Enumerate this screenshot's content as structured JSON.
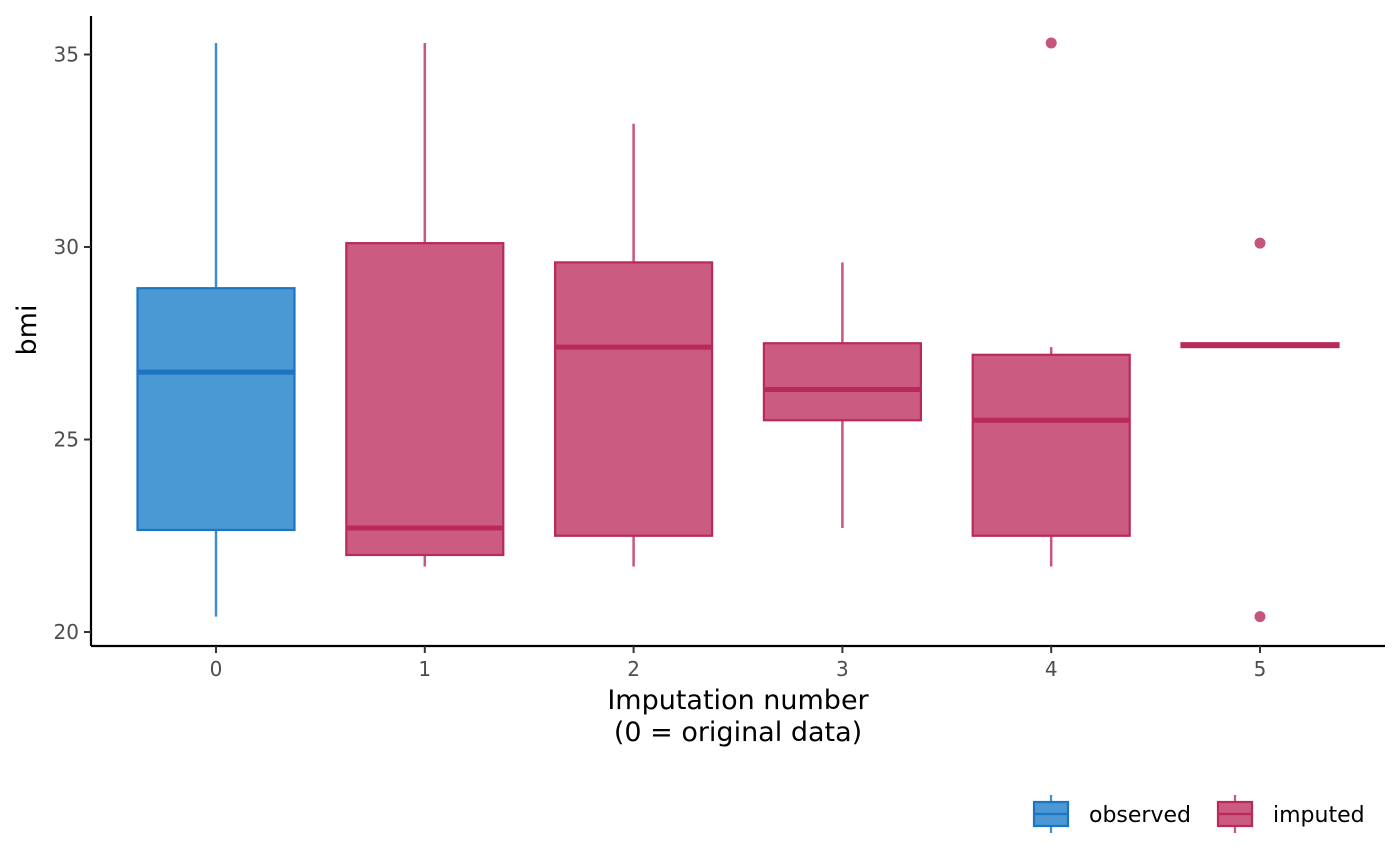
{
  "chart_data": {
    "type": "boxplot",
    "title": "",
    "xlabel_lines": [
      "Imputation number",
      "(0 = original data)"
    ],
    "ylabel": "bmi",
    "categories": [
      "0",
      "1",
      "2",
      "3",
      "4",
      "5"
    ],
    "ylim": [
      19.65,
      36.0
    ],
    "yticks": [
      20,
      25,
      30,
      35
    ],
    "grid": false,
    "legend": {
      "placement": "bottom-right",
      "entries": [
        {
          "label": "observed",
          "group": "observed"
        },
        {
          "label": "imputed",
          "group": "imputed"
        }
      ]
    },
    "colors": {
      "observed": {
        "fill": "#4a98d4",
        "stroke": "#1d75c2",
        "whisker": "#3f8fd0"
      },
      "imputed": {
        "fill": "#cb5b80",
        "stroke": "#b9295a",
        "whisker": "#c95581"
      }
    },
    "boxes": [
      {
        "x": "0",
        "group": "observed",
        "whisker_low": 20.4,
        "q1": 22.65,
        "median": 26.75,
        "q3": 28.93,
        "whisker_high": 35.3,
        "outliers": []
      },
      {
        "x": "1",
        "group": "imputed",
        "whisker_low": 21.7,
        "q1": 22.0,
        "median": 22.7,
        "q3": 30.1,
        "whisker_high": 35.3,
        "outliers": []
      },
      {
        "x": "2",
        "group": "imputed",
        "whisker_low": 21.7,
        "q1": 22.5,
        "median": 27.4,
        "q3": 29.6,
        "whisker_high": 33.2,
        "outliers": []
      },
      {
        "x": "3",
        "group": "imputed",
        "whisker_low": 22.7,
        "q1": 25.5,
        "median": 26.3,
        "q3": 27.5,
        "whisker_high": 29.6,
        "outliers": []
      },
      {
        "x": "4",
        "group": "imputed",
        "whisker_low": 21.7,
        "q1": 22.5,
        "median": 25.5,
        "q3": 27.2,
        "whisker_high": 27.4,
        "outliers": [
          35.3
        ]
      },
      {
        "x": "5",
        "group": "imputed",
        "whisker_low": 27.4,
        "q1": 27.4,
        "median": 27.45,
        "q3": 27.5,
        "whisker_high": 27.5,
        "outliers": [
          30.1,
          20.4
        ]
      }
    ]
  }
}
